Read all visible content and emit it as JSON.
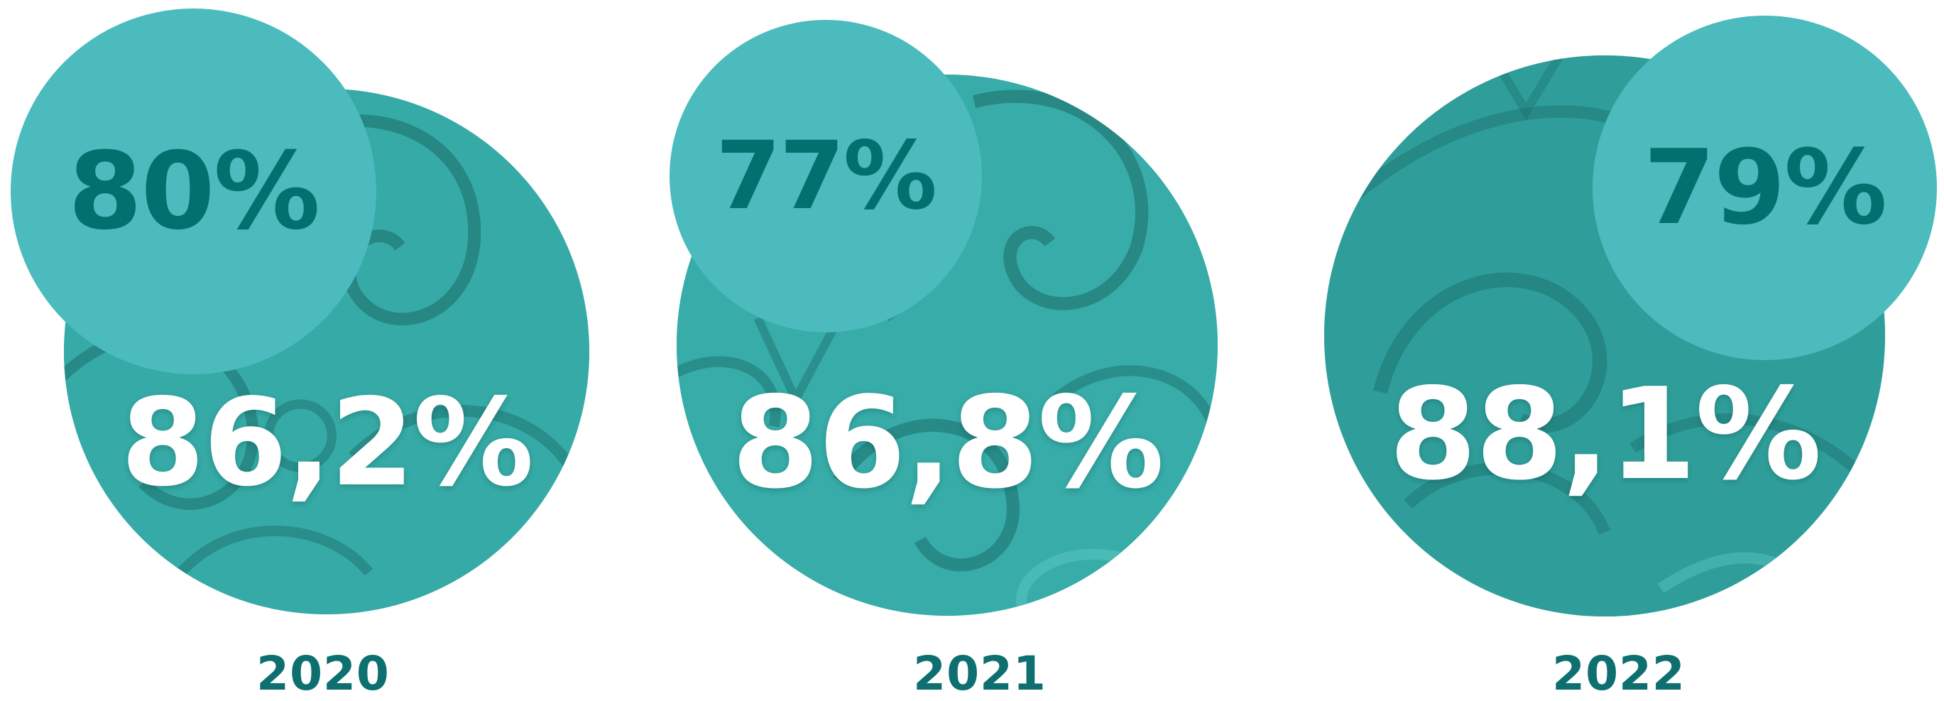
{
  "stats": [
    {
      "year": "2020",
      "main_value": "86,2%",
      "compare_value": "80%"
    },
    {
      "year": "2021",
      "main_value": "86,8%",
      "compare_value": "77%"
    },
    {
      "year": "2022",
      "main_value": "88,1%",
      "compare_value": "79%"
    }
  ],
  "colors": {
    "big_circle_base": "#3aaeaa",
    "small_circle": "#4bbbbd",
    "small_text": "#02706e",
    "big_text": "#ffffff",
    "year_text": "#0d6f70"
  }
}
